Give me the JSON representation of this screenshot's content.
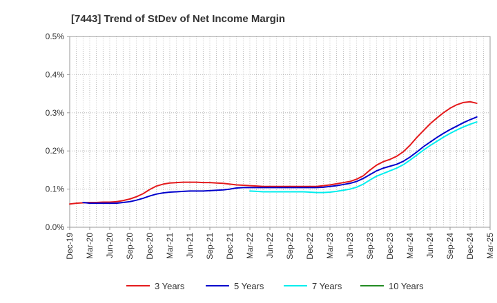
{
  "chart_data": {
    "type": "line",
    "title": "[7443]  Trend of StDev of Net Income Margin",
    "xlabel": "",
    "ylabel": "",
    "ylim": [
      0,
      0.5
    ],
    "y_ticks": [
      "0.0%",
      "0.1%",
      "0.2%",
      "0.3%",
      "0.4%",
      "0.5%"
    ],
    "y_tick_values": [
      0,
      0.1,
      0.2,
      0.3,
      0.4,
      0.5
    ],
    "x_ticks": [
      "Dec-19",
      "Mar-20",
      "Jun-20",
      "Sep-20",
      "Dec-20",
      "Mar-21",
      "Jun-21",
      "Sep-21",
      "Dec-21",
      "Mar-22",
      "Jun-22",
      "Sep-22",
      "Dec-22",
      "Mar-23",
      "Jun-23",
      "Sep-23",
      "Dec-23",
      "Mar-24",
      "Jun-24",
      "Sep-24",
      "Dec-24",
      "Mar-25"
    ],
    "x_unit": "month",
    "grid": true,
    "legend_position": "bottom",
    "series": [
      {
        "name": "3 Years",
        "color": "#e41a1c",
        "points": [
          [
            "Dec-19",
            0.061
          ],
          [
            "Jan-20",
            0.063
          ],
          [
            "Feb-20",
            0.064
          ],
          [
            "Mar-20",
            0.065
          ],
          [
            "Apr-20",
            0.065
          ],
          [
            "May-20",
            0.066
          ],
          [
            "Jun-20",
            0.066
          ],
          [
            "Jul-20",
            0.067
          ],
          [
            "Aug-20",
            0.07
          ],
          [
            "Sep-20",
            0.074
          ],
          [
            "Oct-20",
            0.08
          ],
          [
            "Nov-20",
            0.088
          ],
          [
            "Dec-20",
            0.099
          ],
          [
            "Jan-21",
            0.108
          ],
          [
            "Feb-21",
            0.113
          ],
          [
            "Mar-21",
            0.116
          ],
          [
            "Apr-21",
            0.117
          ],
          [
            "May-21",
            0.118
          ],
          [
            "Jun-21",
            0.118
          ],
          [
            "Jul-21",
            0.118
          ],
          [
            "Aug-21",
            0.117
          ],
          [
            "Sep-21",
            0.117
          ],
          [
            "Oct-21",
            0.116
          ],
          [
            "Nov-21",
            0.115
          ],
          [
            "Dec-21",
            0.113
          ],
          [
            "Jan-22",
            0.111
          ],
          [
            "Feb-22",
            0.11
          ],
          [
            "Mar-22",
            0.109
          ],
          [
            "Apr-22",
            0.108
          ],
          [
            "May-22",
            0.107
          ],
          [
            "Jun-22",
            0.107
          ],
          [
            "Jul-22",
            0.107
          ],
          [
            "Aug-22",
            0.107
          ],
          [
            "Sep-22",
            0.107
          ],
          [
            "Oct-22",
            0.107
          ],
          [
            "Nov-22",
            0.107
          ],
          [
            "Dec-22",
            0.107
          ],
          [
            "Jan-23",
            0.107
          ],
          [
            "Feb-23",
            0.109
          ],
          [
            "Mar-23",
            0.111
          ],
          [
            "Apr-23",
            0.114
          ],
          [
            "May-23",
            0.117
          ],
          [
            "Jun-23",
            0.12
          ],
          [
            "Jul-23",
            0.126
          ],
          [
            "Aug-23",
            0.135
          ],
          [
            "Sep-23",
            0.15
          ],
          [
            "Oct-23",
            0.163
          ],
          [
            "Nov-23",
            0.172
          ],
          [
            "Dec-23",
            0.178
          ],
          [
            "Jan-24",
            0.186
          ],
          [
            "Feb-24",
            0.198
          ],
          [
            "Mar-24",
            0.215
          ],
          [
            "Apr-24",
            0.235
          ],
          [
            "May-24",
            0.253
          ],
          [
            "Jun-24",
            0.271
          ],
          [
            "Jul-24",
            0.286
          ],
          [
            "Aug-24",
            0.3
          ],
          [
            "Sep-24",
            0.312
          ],
          [
            "Oct-24",
            0.321
          ],
          [
            "Nov-24",
            0.327
          ],
          [
            "Dec-24",
            0.329
          ],
          [
            "Jan-25",
            0.325
          ]
        ]
      },
      {
        "name": "5 Years",
        "color": "#0000cc",
        "points": [
          [
            "Feb-20",
            0.065
          ],
          [
            "Mar-20",
            0.063
          ],
          [
            "Apr-20",
            0.063
          ],
          [
            "May-20",
            0.063
          ],
          [
            "Jun-20",
            0.063
          ],
          [
            "Jul-20",
            0.063
          ],
          [
            "Aug-20",
            0.065
          ],
          [
            "Sep-20",
            0.067
          ],
          [
            "Oct-20",
            0.071
          ],
          [
            "Nov-20",
            0.076
          ],
          [
            "Dec-20",
            0.082
          ],
          [
            "Jan-21",
            0.087
          ],
          [
            "Feb-21",
            0.09
          ],
          [
            "Mar-21",
            0.092
          ],
          [
            "Apr-21",
            0.093
          ],
          [
            "May-21",
            0.094
          ],
          [
            "Jun-21",
            0.095
          ],
          [
            "Jul-21",
            0.095
          ],
          [
            "Aug-21",
            0.095
          ],
          [
            "Sep-21",
            0.096
          ],
          [
            "Oct-21",
            0.097
          ],
          [
            "Nov-21",
            0.098
          ],
          [
            "Dec-21",
            0.1
          ],
          [
            "Jan-22",
            0.103
          ],
          [
            "Feb-22",
            0.104
          ],
          [
            "Mar-22",
            0.104
          ],
          [
            "Apr-22",
            0.104
          ],
          [
            "May-22",
            0.104
          ],
          [
            "Jun-22",
            0.104
          ],
          [
            "Jul-22",
            0.104
          ],
          [
            "Aug-22",
            0.104
          ],
          [
            "Sep-22",
            0.104
          ],
          [
            "Oct-22",
            0.104
          ],
          [
            "Nov-22",
            0.104
          ],
          [
            "Dec-22",
            0.104
          ],
          [
            "Jan-23",
            0.104
          ],
          [
            "Feb-23",
            0.105
          ],
          [
            "Mar-23",
            0.107
          ],
          [
            "Apr-23",
            0.109
          ],
          [
            "May-23",
            0.112
          ],
          [
            "Jun-23",
            0.115
          ],
          [
            "Jul-23",
            0.12
          ],
          [
            "Aug-23",
            0.128
          ],
          [
            "Sep-23",
            0.138
          ],
          [
            "Oct-23",
            0.148
          ],
          [
            "Nov-23",
            0.155
          ],
          [
            "Dec-23",
            0.16
          ],
          [
            "Jan-24",
            0.165
          ],
          [
            "Feb-24",
            0.173
          ],
          [
            "Mar-24",
            0.184
          ],
          [
            "Apr-24",
            0.197
          ],
          [
            "May-24",
            0.211
          ],
          [
            "Jun-24",
            0.223
          ],
          [
            "Jul-24",
            0.235
          ],
          [
            "Aug-24",
            0.246
          ],
          [
            "Sep-24",
            0.256
          ],
          [
            "Oct-24",
            0.265
          ],
          [
            "Nov-24",
            0.274
          ],
          [
            "Dec-24",
            0.282
          ],
          [
            "Jan-25",
            0.289
          ]
        ]
      },
      {
        "name": "7 Years",
        "color": "#00eeee",
        "points": [
          [
            "Mar-22",
            0.095
          ],
          [
            "Apr-22",
            0.094
          ],
          [
            "May-22",
            0.093
          ],
          [
            "Jun-22",
            0.093
          ],
          [
            "Jul-22",
            0.093
          ],
          [
            "Aug-22",
            0.093
          ],
          [
            "Sep-22",
            0.093
          ],
          [
            "Oct-22",
            0.093
          ],
          [
            "Nov-22",
            0.093
          ],
          [
            "Dec-22",
            0.092
          ],
          [
            "Jan-23",
            0.091
          ],
          [
            "Feb-23",
            0.091
          ],
          [
            "Mar-23",
            0.092
          ],
          [
            "Apr-23",
            0.094
          ],
          [
            "May-23",
            0.097
          ],
          [
            "Jun-23",
            0.1
          ],
          [
            "Jul-23",
            0.105
          ],
          [
            "Aug-23",
            0.113
          ],
          [
            "Sep-23",
            0.124
          ],
          [
            "Oct-23",
            0.134
          ],
          [
            "Nov-23",
            0.141
          ],
          [
            "Dec-23",
            0.148
          ],
          [
            "Jan-24",
            0.155
          ],
          [
            "Feb-24",
            0.164
          ],
          [
            "Mar-24",
            0.176
          ],
          [
            "Apr-24",
            0.189
          ],
          [
            "May-24",
            0.202
          ],
          [
            "Jun-24",
            0.214
          ],
          [
            "Jul-24",
            0.225
          ],
          [
            "Aug-24",
            0.236
          ],
          [
            "Sep-24",
            0.246
          ],
          [
            "Oct-24",
            0.255
          ],
          [
            "Nov-24",
            0.263
          ],
          [
            "Dec-24",
            0.27
          ],
          [
            "Jan-25",
            0.276
          ]
        ]
      },
      {
        "name": "10 Years",
        "color": "#228b22",
        "points": []
      }
    ]
  }
}
